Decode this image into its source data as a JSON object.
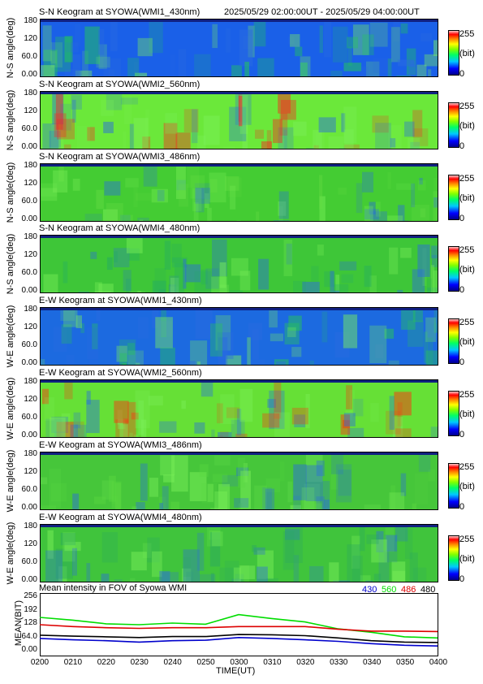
{
  "header": {
    "datetime_range": "2025/05/29 02:00:00UT - 2025/05/29 04:00:00UT"
  },
  "colorbar": {
    "max": "255",
    "unit": "(bit)",
    "min": "0"
  },
  "angle_ticks": [
    "180",
    "120",
    "60.0",
    "0.00"
  ],
  "keograms": [
    {
      "title": "S-N Keogram at SYOWA(WMI1_430nm)",
      "ylabel": "N-S angle(deg)",
      "base": "#1a60e8",
      "accent": "#22d04a"
    },
    {
      "title": "S-N Keogram at SYOWA(WMI2_560nm)",
      "ylabel": "N-S angle(deg)",
      "base": "#6be83a",
      "accent": "#ff2020"
    },
    {
      "title": "S-N Keogram at SYOWA(WMI3_486nm)",
      "ylabel": "N-S angle(deg)",
      "base": "#44cc33",
      "accent": "#66dd44"
    },
    {
      "title": "S-N Keogram at SYOWA(WMI4_480nm)",
      "ylabel": "N-S angle(deg)",
      "base": "#3ec638",
      "accent": "#22aa66"
    },
    {
      "title": "E-W Keogram at SYOWA(WMI1_430nm)",
      "ylabel": "W-E angle(deg)",
      "base": "#1c6ae0",
      "accent": "#28c850"
    },
    {
      "title": "E-W Keogram at SYOWA(WMI2_560nm)",
      "ylabel": "W-E angle(deg)",
      "base": "#66e036",
      "accent": "#ff3010"
    },
    {
      "title": "E-W Keogram at SYOWA(WMI3_486nm)",
      "ylabel": "W-E angle(deg)",
      "base": "#46c63a",
      "accent": "#5ad840"
    },
    {
      "title": "E-W Keogram at SYOWA(WMI4_480nm)",
      "ylabel": "W-E angle(deg)",
      "base": "#40c43c",
      "accent": "#2aa860"
    }
  ],
  "chart_data": {
    "type": "line",
    "title": "Mean intensity in FOV of Syowa WMI",
    "xlabel": "TIME(UT)",
    "ylabel": "MEAN(BIT)",
    "ylim": [
      0,
      256
    ],
    "yticks": [
      "256",
      "192",
      "128",
      "64.0",
      "0.00"
    ],
    "categories": [
      "0200",
      "0210",
      "0220",
      "0230",
      "0240",
      "0250",
      "0300",
      "0310",
      "0320",
      "0330",
      "0340",
      "0350",
      "0400"
    ],
    "series": [
      {
        "name": "430",
        "color": "#0000cc",
        "values": [
          68,
          62,
          58,
          52,
          58,
          60,
          72,
          68,
          62,
          55,
          45,
          38,
          35
        ]
      },
      {
        "name": "560",
        "color": "#00dd00",
        "values": [
          160,
          148,
          132,
          128,
          135,
          130,
          172,
          155,
          140,
          110,
          95,
          75,
          70
        ]
      },
      {
        "name": "486",
        "color": "#dd0000",
        "values": [
          128,
          120,
          115,
          112,
          115,
          115,
          120,
          120,
          120,
          108,
          100,
          100,
          98
        ]
      },
      {
        "name": "480",
        "color": "#000000",
        "values": [
          82,
          78,
          75,
          72,
          76,
          76,
          85,
          84,
          80,
          70,
          58,
          52,
          50
        ]
      }
    ]
  }
}
